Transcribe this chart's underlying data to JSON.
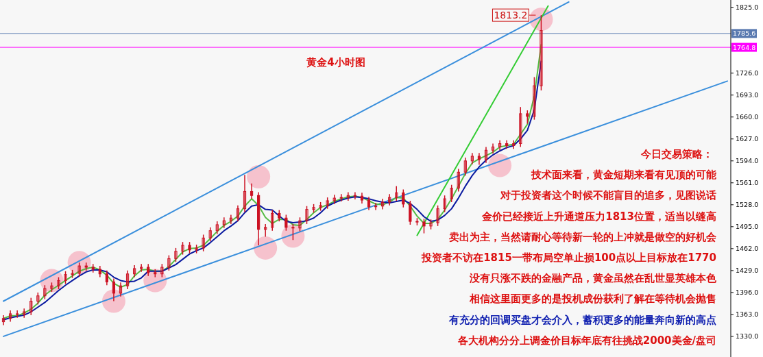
{
  "chart_data": {
    "type": "candlestick",
    "title": "黄金4小时图",
    "categories": [
      null,
      null,
      null,
      null,
      null,
      null,
      null,
      null,
      null,
      null,
      null,
      null,
      null,
      null,
      null,
      null,
      null,
      null,
      null,
      null,
      null,
      null,
      null,
      null,
      null,
      null,
      null,
      null,
      null,
      null,
      null,
      null,
      null,
      null,
      null,
      null,
      null,
      null,
      null,
      null,
      null,
      null,
      null,
      null,
      null,
      null,
      null,
      null,
      null,
      null,
      null,
      null,
      null,
      null,
      null,
      null,
      null,
      null,
      null,
      null,
      null,
      null,
      null,
      null,
      null,
      null,
      null,
      null,
      null,
      null,
      null,
      null,
      null,
      null,
      null,
      null,
      null,
      null,
      null,
      null,
      null,
      null,
      null,
      null,
      null,
      null,
      null,
      null,
      null,
      null,
      null,
      null,
      null,
      null,
      null,
      null,
      null,
      null,
      null,
      null,
      null,
      null,
      null,
      null,
      null,
      null
    ],
    "color": "#cc1122",
    "ohlc": [
      [
        1352,
        1362,
        1347,
        1357
      ],
      [
        1357,
        1369,
        1352,
        1364
      ],
      [
        1364,
        1369,
        1358,
        1363
      ],
      [
        1363,
        1372,
        1358,
        1367
      ],
      [
        1367,
        1388,
        1362,
        1383
      ],
      [
        1383,
        1396,
        1378,
        1391
      ],
      [
        1391,
        1407,
        1386,
        1402
      ],
      [
        1402,
        1411,
        1397,
        1406
      ],
      [
        1406,
        1419,
        1401,
        1414
      ],
      [
        1414,
        1428,
        1409,
        1423
      ],
      [
        1423,
        1430,
        1418,
        1425
      ],
      [
        1425,
        1441,
        1420,
        1436
      ],
      [
        1436,
        1441,
        1429,
        1434
      ],
      [
        1434,
        1439,
        1426,
        1431
      ],
      [
        1431,
        1436,
        1419,
        1424
      ],
      [
        1424,
        1429,
        1407,
        1412
      ],
      [
        1412,
        1417,
        1383,
        1395
      ],
      [
        1395,
        1411,
        1390,
        1406
      ],
      [
        1406,
        1429,
        1401,
        1424
      ],
      [
        1424,
        1437,
        1419,
        1432
      ],
      [
        1432,
        1439,
        1427,
        1434
      ],
      [
        1434,
        1439,
        1421,
        1426
      ],
      [
        1426,
        1431,
        1419,
        1424
      ],
      [
        1424,
        1439,
        1419,
        1434
      ],
      [
        1434,
        1452,
        1429,
        1447
      ],
      [
        1447,
        1463,
        1442,
        1458
      ],
      [
        1458,
        1472,
        1453,
        1467
      ],
      [
        1467,
        1472,
        1455,
        1460
      ],
      [
        1460,
        1468,
        1455,
        1463
      ],
      [
        1463,
        1483,
        1458,
        1478
      ],
      [
        1478,
        1494,
        1473,
        1489
      ],
      [
        1489,
        1503,
        1484,
        1498
      ],
      [
        1498,
        1509,
        1493,
        1504
      ],
      [
        1504,
        1513,
        1499,
        1508
      ],
      [
        1508,
        1527,
        1503,
        1522
      ],
      [
        1522,
        1573,
        1517,
        1548
      ],
      [
        1548,
        1560,
        1537,
        1542
      ],
      [
        1542,
        1547,
        1467,
        1491
      ],
      [
        1491,
        1499,
        1480,
        1494
      ],
      [
        1494,
        1520,
        1489,
        1515
      ],
      [
        1515,
        1520,
        1503,
        1508
      ],
      [
        1508,
        1513,
        1489,
        1494
      ],
      [
        1494,
        1499,
        1475,
        1493
      ],
      [
        1493,
        1509,
        1488,
        1504
      ],
      [
        1504,
        1526,
        1499,
        1521
      ],
      [
        1521,
        1529,
        1516,
        1524
      ],
      [
        1524,
        1532,
        1519,
        1527
      ],
      [
        1527,
        1539,
        1522,
        1534
      ],
      [
        1534,
        1543,
        1529,
        1538
      ],
      [
        1538,
        1544,
        1533,
        1539
      ],
      [
        1539,
        1547,
        1534,
        1542
      ],
      [
        1542,
        1547,
        1536,
        1541
      ],
      [
        1541,
        1546,
        1530,
        1535
      ],
      [
        1535,
        1540,
        1520,
        1525
      ],
      [
        1525,
        1531,
        1520,
        1526
      ],
      [
        1526,
        1537,
        1521,
        1532
      ],
      [
        1532,
        1544,
        1527,
        1539
      ],
      [
        1539,
        1556,
        1534,
        1546
      ],
      [
        1546,
        1551,
        1524,
        1529
      ],
      [
        1529,
        1534,
        1498,
        1503
      ],
      [
        1503,
        1508,
        1497,
        1502
      ],
      [
        1502,
        1507,
        1485,
        1496
      ],
      [
        1496,
        1506,
        1491,
        1501
      ],
      [
        1501,
        1527,
        1496,
        1522
      ],
      [
        1522,
        1542,
        1517,
        1537
      ],
      [
        1537,
        1558,
        1532,
        1553
      ],
      [
        1553,
        1582,
        1548,
        1577
      ],
      [
        1577,
        1599,
        1572,
        1594
      ],
      [
        1594,
        1606,
        1589,
        1601
      ],
      [
        1601,
        1606,
        1588,
        1596
      ],
      [
        1596,
        1615,
        1591,
        1610
      ],
      [
        1610,
        1620,
        1605,
        1615
      ],
      [
        1615,
        1625,
        1610,
        1620
      ],
      [
        1620,
        1625,
        1612,
        1617
      ],
      [
        1617,
        1625,
        1612,
        1620
      ],
      [
        1620,
        1675,
        1615,
        1665
      ],
      [
        1665,
        1670,
        1650,
        1661
      ],
      [
        1661,
        1720,
        1656,
        1707
      ],
      [
        1707,
        1813.2,
        1700,
        1790
      ],
      null,
      null,
      null,
      null,
      null,
      null,
      null,
      null,
      null,
      null,
      null,
      null,
      null,
      null,
      null,
      null,
      null,
      null,
      null,
      null,
      null,
      null,
      null,
      null,
      null,
      null,
      null
    ],
    "series": [
      {
        "type": "scatter",
        "marker": "circle",
        "color": "#f6b8c6",
        "values": [
          null,
          null,
          null,
          null,
          null,
          null,
          null,
          1414,
          null,
          null,
          null,
          1441,
          null,
          null,
          null,
          null,
          1383,
          null,
          null,
          null,
          null,
          null,
          1414,
          null,
          null,
          null,
          null,
          null,
          null,
          null,
          null,
          null,
          null,
          null,
          null,
          null,
          null,
          1570,
          1463,
          null,
          null,
          null,
          1481,
          null,
          null,
          null,
          null,
          null,
          null,
          null,
          null,
          null,
          null,
          null,
          null,
          null,
          null,
          null,
          null,
          null,
          null,
          null,
          null,
          null,
          null,
          null,
          null,
          null,
          null,
          null,
          null,
          null,
          1587,
          null,
          null,
          null,
          null,
          null,
          1807,
          null,
          null,
          null,
          null,
          null,
          null,
          null,
          null,
          null,
          null,
          null,
          null,
          null,
          null,
          null,
          null,
          null,
          null,
          null,
          null,
          null,
          null,
          null,
          null,
          null,
          null,
          null
        ]
      },
      {
        "type": "line",
        "color": "#3a8fdc",
        "values": [
          1383,
          null,
          null,
          null,
          null,
          null,
          null,
          null,
          null,
          null,
          null,
          null,
          null,
          null,
          null,
          null,
          null,
          null,
          null,
          null,
          null,
          null,
          null,
          null,
          null,
          null,
          null,
          null,
          null,
          null,
          null,
          null,
          null,
          null,
          null,
          null,
          null,
          null,
          null,
          null,
          null,
          null,
          null,
          null,
          null,
          null,
          null,
          null,
          null,
          null,
          null,
          null,
          null,
          null,
          null,
          null,
          null,
          null,
          null,
          null,
          null,
          null,
          null,
          null,
          null,
          null,
          null,
          null,
          null,
          null,
          null,
          null,
          null,
          null,
          null,
          null,
          null,
          null,
          null,
          null,
          null,
          null,
          1833,
          null,
          null,
          null,
          null,
          null,
          null,
          null,
          null,
          null,
          null,
          null,
          null,
          null,
          null,
          null,
          null,
          null,
          null,
          null,
          null,
          null,
          null,
          null
        ]
      },
      {
        "type": "line",
        "color": "#3a8fdc",
        "values": [
          1330,
          null,
          null,
          null,
          null,
          null,
          null,
          null,
          null,
          null,
          null,
          null,
          null,
          null,
          null,
          null,
          null,
          null,
          null,
          null,
          null,
          null,
          null,
          null,
          null,
          null,
          null,
          null,
          null,
          null,
          null,
          null,
          null,
          null,
          null,
          null,
          null,
          null,
          null,
          null,
          null,
          null,
          null,
          null,
          null,
          null,
          null,
          null,
          null,
          null,
          null,
          null,
          null,
          null,
          null,
          null,
          null,
          null,
          null,
          null,
          null,
          null,
          null,
          null,
          null,
          null,
          null,
          null,
          null,
          null,
          null,
          null,
          null,
          null,
          null,
          null,
          null,
          null,
          null,
          null,
          null,
          null,
          null,
          null,
          null,
          null,
          null,
          null,
          null,
          null,
          null,
          null,
          null,
          null,
          null,
          null,
          null,
          null,
          null,
          null,
          null,
          null,
          null,
          null,
          null,
          1714
        ]
      },
      {
        "type": "line",
        "color": "#33cc33",
        "values": [
          null,
          null,
          null,
          null,
          null,
          null,
          null,
          null,
          null,
          null,
          null,
          null,
          null,
          null,
          null,
          null,
          null,
          null,
          null,
          null,
          null,
          null,
          null,
          null,
          null,
          null,
          null,
          null,
          null,
          null,
          null,
          null,
          null,
          null,
          null,
          null,
          null,
          null,
          null,
          null,
          null,
          null,
          null,
          null,
          null,
          null,
          null,
          null,
          null,
          null,
          null,
          null,
          null,
          null,
          null,
          null,
          null,
          null,
          null,
          null,
          1482,
          null,
          null,
          null,
          null,
          null,
          null,
          null,
          null,
          null,
          null,
          null,
          null,
          null,
          null,
          null,
          null,
          null,
          null,
          1827,
          null,
          null,
          null,
          null,
          null,
          null,
          null,
          null,
          null,
          null,
          null,
          null,
          null,
          null,
          null,
          null,
          null,
          null,
          null,
          null,
          null,
          null,
          null,
          null,
          null,
          null
        ]
      },
      {
        "type": "line",
        "color": "#55bb44",
        "values": [
          1357,
          1361,
          1361,
          1365,
          1371,
          1380,
          1392,
          1400,
          1407,
          1414,
          1421,
          1428,
          1432,
          1434,
          1430,
          1422,
          1410,
          1404,
          1408,
          1421,
          1430,
          1431,
          1428,
          1428,
          1435,
          1446,
          1457,
          1462,
          1463,
          1467,
          1477,
          1488,
          1497,
          1503,
          1511,
          1526,
          1537,
          1527,
          1509,
          1500,
          1506,
          1506,
          1498,
          1497,
          1506,
          1516,
          1524,
          1528,
          1533,
          1537,
          1540,
          1541,
          1539,
          1534,
          1529,
          1528,
          1532,
          1539,
          1538,
          1526,
          1511,
          1500,
          1500,
          1506,
          1520,
          1537,
          1556,
          1575,
          1591,
          1597,
          1602,
          1607,
          1615,
          1617,
          1619,
          1634,
          1649,
          1692,
          1769,
          null,
          null,
          null,
          null,
          null,
          null,
          null,
          null,
          null,
          null,
          null,
          null,
          null,
          null,
          null,
          null,
          null,
          null,
          null,
          null,
          null,
          null,
          null,
          null,
          null,
          null,
          null
        ]
      },
      {
        "type": "line",
        "color": "#0a1aa0",
        "values": [
          1355,
          1358,
          1360,
          1362,
          1367,
          1374,
          1381,
          1390,
          1399,
          1407,
          1414,
          1421,
          1427,
          1430,
          1430,
          1427,
          1419,
          1414,
          1412,
          1413,
          1418,
          1428,
          1428,
          1428,
          1433,
          1438,
          1446,
          1454,
          1459,
          1463,
          1471,
          1480,
          1489,
          1496,
          1504,
          1516,
          1526,
          1528,
          1521,
          1520,
          1511,
          1503,
          1501,
          1502,
          1504,
          1508,
          1516,
          1526,
          1531,
          1535,
          1538,
          1540,
          1539,
          1537,
          1534,
          1532,
          1531,
          1533,
          1535,
          1530,
          1521,
          1510,
          1503,
          1505,
          1512,
          1522,
          1538,
          1556,
          1572,
          1585,
          1595,
          1603,
          1609,
          1614,
          1617,
          1627,
          1640,
          1671,
          1744,
          null,
          null,
          null,
          null,
          null,
          null,
          null,
          null,
          null,
          null,
          null,
          null,
          null,
          null,
          null,
          null,
          null,
          null,
          null,
          null,
          null,
          null,
          null,
          null,
          null,
          null,
          null
        ]
      }
    ],
    "ylim": [
      1299,
      1836
    ],
    "yticks": [
      {
        "value": 1825,
        "label": "1825.0"
      },
      {
        "value": 1726,
        "label": "1726.0"
      },
      {
        "value": 1693,
        "label": "1693.0"
      },
      {
        "value": 1660,
        "label": "1660.0"
      },
      {
        "value": 1627,
        "label": "1627.0"
      },
      {
        "value": 1594,
        "label": "1594.0"
      },
      {
        "value": 1561,
        "label": "1561.0"
      },
      {
        "value": 1528,
        "label": "1528.0"
      },
      {
        "value": 1495,
        "label": "1495.0"
      },
      {
        "value": 1462,
        "label": "1462.0"
      },
      {
        "value": 1429,
        "label": "1429.0"
      },
      {
        "value": 1396,
        "label": "1396.0"
      },
      {
        "value": 1363,
        "label": "1363.0"
      },
      {
        "value": 1330,
        "label": "1330.0"
      }
    ],
    "ref_lines": [
      {
        "axis": "y",
        "value": 1785.6,
        "label": "1785.6",
        "color": "#5a7ab0"
      },
      {
        "axis": "y",
        "value": 1764.8,
        "label": "1764.8",
        "color": "#ff00ff"
      }
    ],
    "annotations": [
      "1813.2",
      "今日交易策略：",
      "技术面来看，黄金短期来看有见顶的可能",
      "对于投资者这个时候不能盲目的追多，见图说话",
      "金价已经接近上升通道压力1813位置，适当以缝高",
      "卖出为主，当然请耐心等待新一轮的上冲就是做空的好机会",
      "投资者不访在1815一带布局空单止损100点以上目标放在1770",
      "没有只涨不跌的金融产品，黄金虽然在乱世显英雄本色",
      "相信这里面更多的是投机成份获利了解在等待机会抛售",
      "有充分的回调买盘才会介入，蓄积更多的能量奔向新的高点",
      "各大机构分分上调金价目标年底有往挑战2000美金/盘司"
    ],
    "grid": false
  }
}
